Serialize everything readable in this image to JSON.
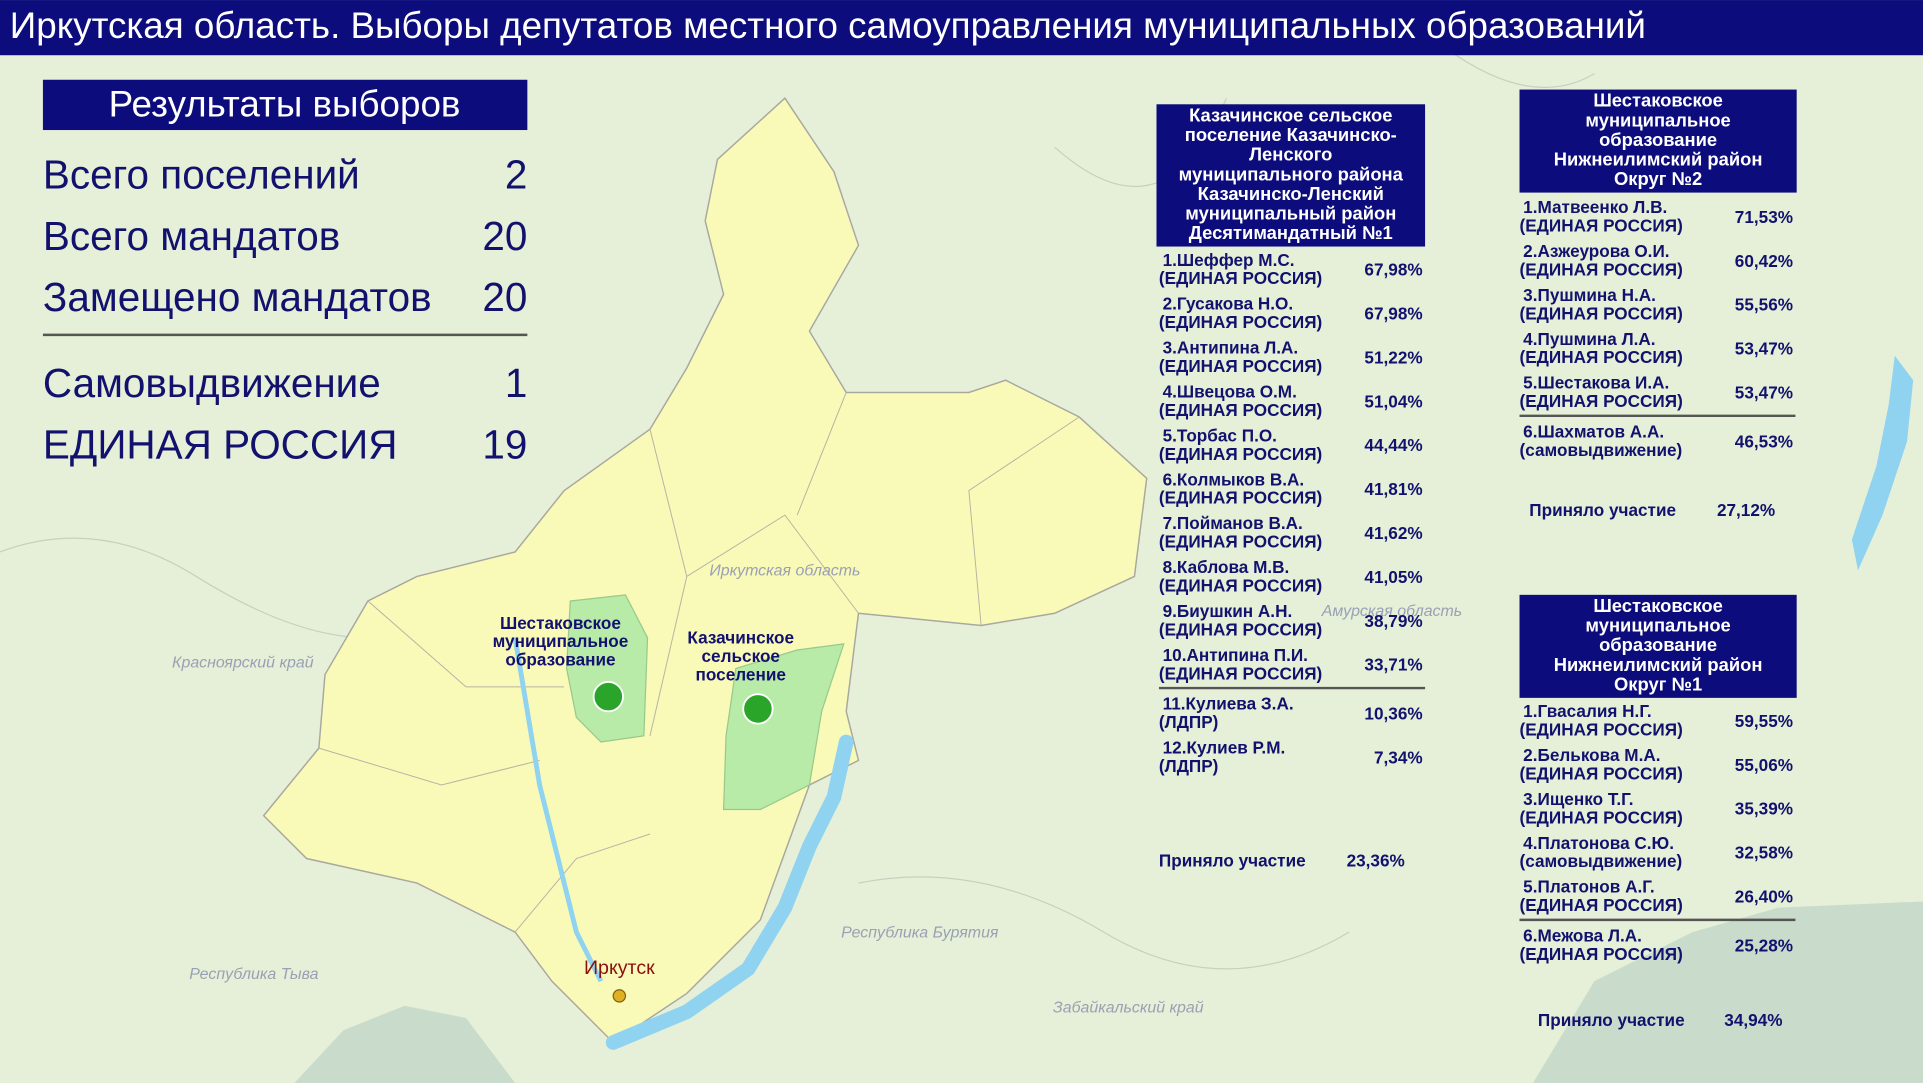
{
  "header": {
    "title": "Иркутская область. Выборы депутатов местного самоуправления муниципальных образований"
  },
  "summary": {
    "title": "Результаты выборов",
    "rows": [
      {
        "label": "Всего поселений",
        "value": 2
      },
      {
        "label": "Всего мандатов",
        "value": 20
      },
      {
        "label": "Замещено мандатов",
        "value": 20
      }
    ],
    "parties": [
      {
        "label": "Самовыдвижение",
        "value": 1
      },
      {
        "label": "ЕДИНАЯ РОССИЯ",
        "value": 19
      }
    ]
  },
  "map": {
    "regions": [
      "Иркутская область",
      "Амурская область",
      "Красноярский край",
      "Республика Тыва",
      "Республика Бурятия",
      "Забайкальский край"
    ],
    "settlements": [
      [
        "Шестаковское",
        "муниципальное",
        "образование"
      ],
      [
        "Казачинское",
        "сельское",
        "поселение"
      ]
    ],
    "city": "Иркутск"
  },
  "panels": [
    {
      "title": [
        "Казачинское сельское",
        "поселение Казачинско-",
        "Ленского",
        "муниципального района",
        "Казачинско-Ленский",
        "муниципальный район",
        "Десятимандатный №1"
      ],
      "candidates": [
        {
          "name": "1.Шеффер М.С.",
          "party": "(ЕДИНАЯ РОССИЯ)",
          "percent": "67,98%"
        },
        {
          "name": "2.Гусакова Н.О.",
          "party": "(ЕДИНАЯ РОССИЯ)",
          "percent": "67,98%"
        },
        {
          "name": "3.Антипина Л.А.",
          "party": "(ЕДИНАЯ РОССИЯ)",
          "percent": "51,22%"
        },
        {
          "name": "4.Швецова О.М.",
          "party": "(ЕДИНАЯ РОССИЯ)",
          "percent": "51,04%"
        },
        {
          "name": "5.Торбас П.О.",
          "party": "(ЕДИНАЯ РОССИЯ)",
          "percent": "44,44%"
        },
        {
          "name": "6.Колмыков В.А.",
          "party": "(ЕДИНАЯ РОССИЯ)",
          "percent": "41,81%"
        },
        {
          "name": "7.Пойманов В.А.",
          "party": "(ЕДИНАЯ РОССИЯ)",
          "percent": "41,62%"
        },
        {
          "name": "8.Каблова М.В.",
          "party": "(ЕДИНАЯ РОССИЯ)",
          "percent": "41,05%"
        },
        {
          "name": "9.Биушкин А.Н.",
          "party": "(ЕДИНАЯ РОССИЯ)",
          "percent": "38,79%"
        },
        {
          "name": "10.Антипина П.И.",
          "party": "(ЕДИНАЯ РОССИЯ)",
          "percent": "33,71%"
        },
        {
          "name": "11.Кулиева З.А.",
          "party": "(ЛДПР)",
          "percent": "10,36%"
        },
        {
          "name": "12.Кулиев Р.М.",
          "party": "(ЛДПР)",
          "percent": "7,34%"
        }
      ],
      "turnout_label": "Приняло участие",
      "turnout": "23,36%"
    },
    {
      "title": [
        "Шестаковское",
        "муниципальное",
        "образование",
        "Нижнеилимский район",
        "Округ №2"
      ],
      "candidates": [
        {
          "name": "1.Матвеенко Л.В.",
          "party": "(ЕДИНАЯ РОССИЯ)",
          "percent": "71,53%"
        },
        {
          "name": "2.Азжеурова О.И.",
          "party": "(ЕДИНАЯ РОССИЯ)",
          "percent": "60,42%"
        },
        {
          "name": "3.Пушмина Н.А.",
          "party": "(ЕДИНАЯ РОССИЯ)",
          "percent": "55,56%"
        },
        {
          "name": "4.Пушмина Л.А.",
          "party": "(ЕДИНАЯ РОССИЯ)",
          "percent": "53,47%"
        },
        {
          "name": "5.Шестакова И.А.",
          "party": "(ЕДИНАЯ РОССИЯ)",
          "percent": "53,47%"
        },
        {
          "name": "6.Шахматов А.А.",
          "party": "(самовыдвижение)",
          "percent": "46,53%"
        }
      ],
      "turnout_label": "Приняло участие",
      "turnout": "27,12%"
    },
    {
      "title": [
        "Шестаковское",
        "муниципальное",
        "образование",
        "Нижнеилимский район",
        "Округ №1"
      ],
      "candidates": [
        {
          "name": "1.Гвасалия Н.Г.",
          "party": "(ЕДИНАЯ РОССИЯ)",
          "percent": "59,55%"
        },
        {
          "name": "2.Белькова М.А.",
          "party": "(ЕДИНАЯ РОССИЯ)",
          "percent": "55,06%"
        },
        {
          "name": "3.Ищенко Т.Г.",
          "party": "(ЕДИНАЯ РОССИЯ)",
          "percent": "35,39%"
        },
        {
          "name": "4.Платонова С.Ю.",
          "party": "(самовыдвижение)",
          "percent": "32,58%"
        },
        {
          "name": "5.Платонов А.Г.",
          "party": "(ЕДИНАЯ РОССИЯ)",
          "percent": "26,40%"
        },
        {
          "name": "6.Межова Л.А.",
          "party": "(ЕДИНАЯ РОССИЯ)",
          "percent": "25,28%"
        }
      ],
      "turnout_label": "Приняло участие",
      "turnout": "34,94%"
    }
  ]
}
